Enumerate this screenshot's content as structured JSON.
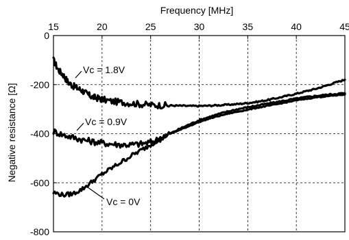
{
  "chart_data": {
    "type": "line",
    "xlabel": "Frequency [MHz]",
    "ylabel": "Negative resistance [Ω]",
    "xlim": [
      15,
      45
    ],
    "ylim": [
      -800,
      0
    ],
    "xticks": [
      "15",
      "20",
      "25",
      "30",
      "35",
      "40",
      "45"
    ],
    "yticks": [
      "0",
      "-200",
      "-400",
      "-600",
      "-800"
    ],
    "x_axis_position": "top",
    "grid": true,
    "series": [
      {
        "name": "Vc = 1.8V",
        "x": [
          15,
          15.5,
          16,
          16.5,
          17,
          17.5,
          18,
          18.5,
          19,
          19.5,
          20,
          21,
          22,
          23,
          24,
          25,
          26,
          27,
          28,
          29,
          30,
          31,
          32,
          33,
          34,
          35,
          36,
          37,
          38,
          39,
          40,
          41,
          42,
          43,
          44,
          45
        ],
        "values": [
          -100,
          -140,
          -160,
          -190,
          -205,
          -215,
          -225,
          -240,
          -250,
          -255,
          -260,
          -268,
          -272,
          -276,
          -280,
          -283,
          -284,
          -285,
          -286,
          -287,
          -287,
          -286,
          -284,
          -282,
          -279,
          -275,
          -270,
          -263,
          -255,
          -246,
          -237,
          -227,
          -217,
          -205,
          -192,
          -180
        ]
      },
      {
        "name": "Vc = 0.9V",
        "x": [
          15,
          16,
          17,
          18,
          19,
          20,
          21,
          22,
          23,
          24,
          25,
          26,
          27,
          28,
          29,
          30,
          31,
          32,
          33,
          34,
          35,
          36,
          37,
          38,
          39,
          40,
          41,
          42,
          43,
          44,
          45
        ],
        "values": [
          -390,
          -405,
          -415,
          -425,
          -432,
          -438,
          -442,
          -445,
          -445,
          -442,
          -435,
          -420,
          -400,
          -380,
          -362,
          -345,
          -332,
          -320,
          -309,
          -300,
          -292,
          -285,
          -278,
          -271,
          -264,
          -257,
          -251,
          -246,
          -242,
          -238,
          -235
        ]
      },
      {
        "name": "Vc = 0V",
        "x": [
          15,
          16,
          17,
          18,
          19,
          20,
          21,
          22,
          23,
          24,
          25,
          26,
          27,
          28,
          29,
          30,
          31,
          32,
          33,
          34,
          35,
          36,
          37,
          38,
          39,
          40,
          41,
          42,
          43,
          44,
          45
        ],
        "values": [
          -640,
          -650,
          -645,
          -625,
          -595,
          -565,
          -540,
          -515,
          -490,
          -468,
          -445,
          -420,
          -400,
          -385,
          -368,
          -352,
          -339,
          -328,
          -318,
          -310,
          -302,
          -294,
          -287,
          -280,
          -272,
          -264,
          -258,
          -252,
          -248,
          -244,
          -240
        ]
      }
    ],
    "annotations": [
      "Vc = 1.8V",
      "Vc = 0.9V",
      "Vc = 0V"
    ]
  }
}
